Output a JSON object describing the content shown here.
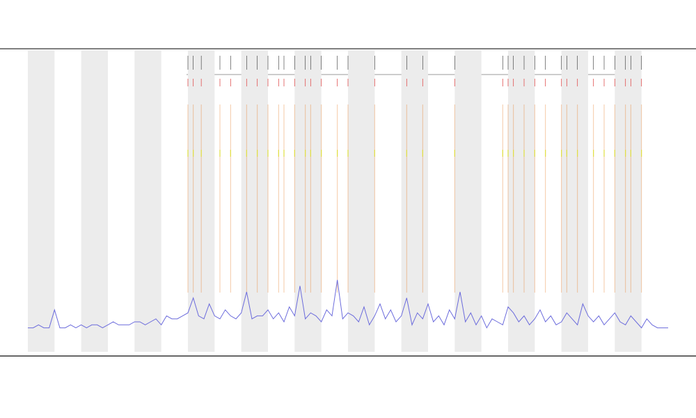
{
  "chart_data": {
    "type": "line",
    "xlim": [
      0,
      120
    ],
    "ylim": [
      0,
      100
    ],
    "series": [
      {
        "color": "#6b6bdc",
        "values": [
          8,
          8,
          9,
          8,
          8,
          14,
          8,
          8,
          9,
          8,
          9,
          8,
          9,
          9,
          8,
          9,
          10,
          9,
          9,
          9,
          10,
          10,
          9,
          10,
          11,
          9,
          12,
          11,
          11,
          12,
          13,
          18,
          12,
          11,
          16,
          12,
          11,
          14,
          12,
          11,
          13,
          20,
          11,
          12,
          12,
          14,
          11,
          13,
          10,
          15,
          12,
          22,
          11,
          13,
          12,
          10,
          14,
          12,
          24,
          11,
          13,
          12,
          10,
          15,
          9,
          12,
          16,
          11,
          14,
          10,
          12,
          18,
          9,
          13,
          11,
          16,
          10,
          12,
          9,
          14,
          11,
          20,
          10,
          13,
          9,
          12,
          8,
          11,
          10,
          9,
          15,
          13,
          10,
          12,
          9,
          11,
          14,
          10,
          12,
          9,
          10,
          13,
          11,
          9,
          16,
          12,
          10,
          12,
          9,
          11,
          13,
          10,
          9,
          12,
          10,
          8,
          11,
          9,
          8,
          8,
          8
        ]
      }
    ],
    "markers": [
      30,
      31,
      32.5,
      36,
      38,
      41,
      43,
      45,
      47,
      48,
      50,
      52,
      53,
      55,
      58,
      60,
      65,
      71,
      74,
      80,
      89,
      90,
      91,
      93,
      95,
      97,
      100,
      101,
      103,
      106,
      108,
      110,
      112,
      113,
      115
    ],
    "marker_color": "#e8883a"
  }
}
